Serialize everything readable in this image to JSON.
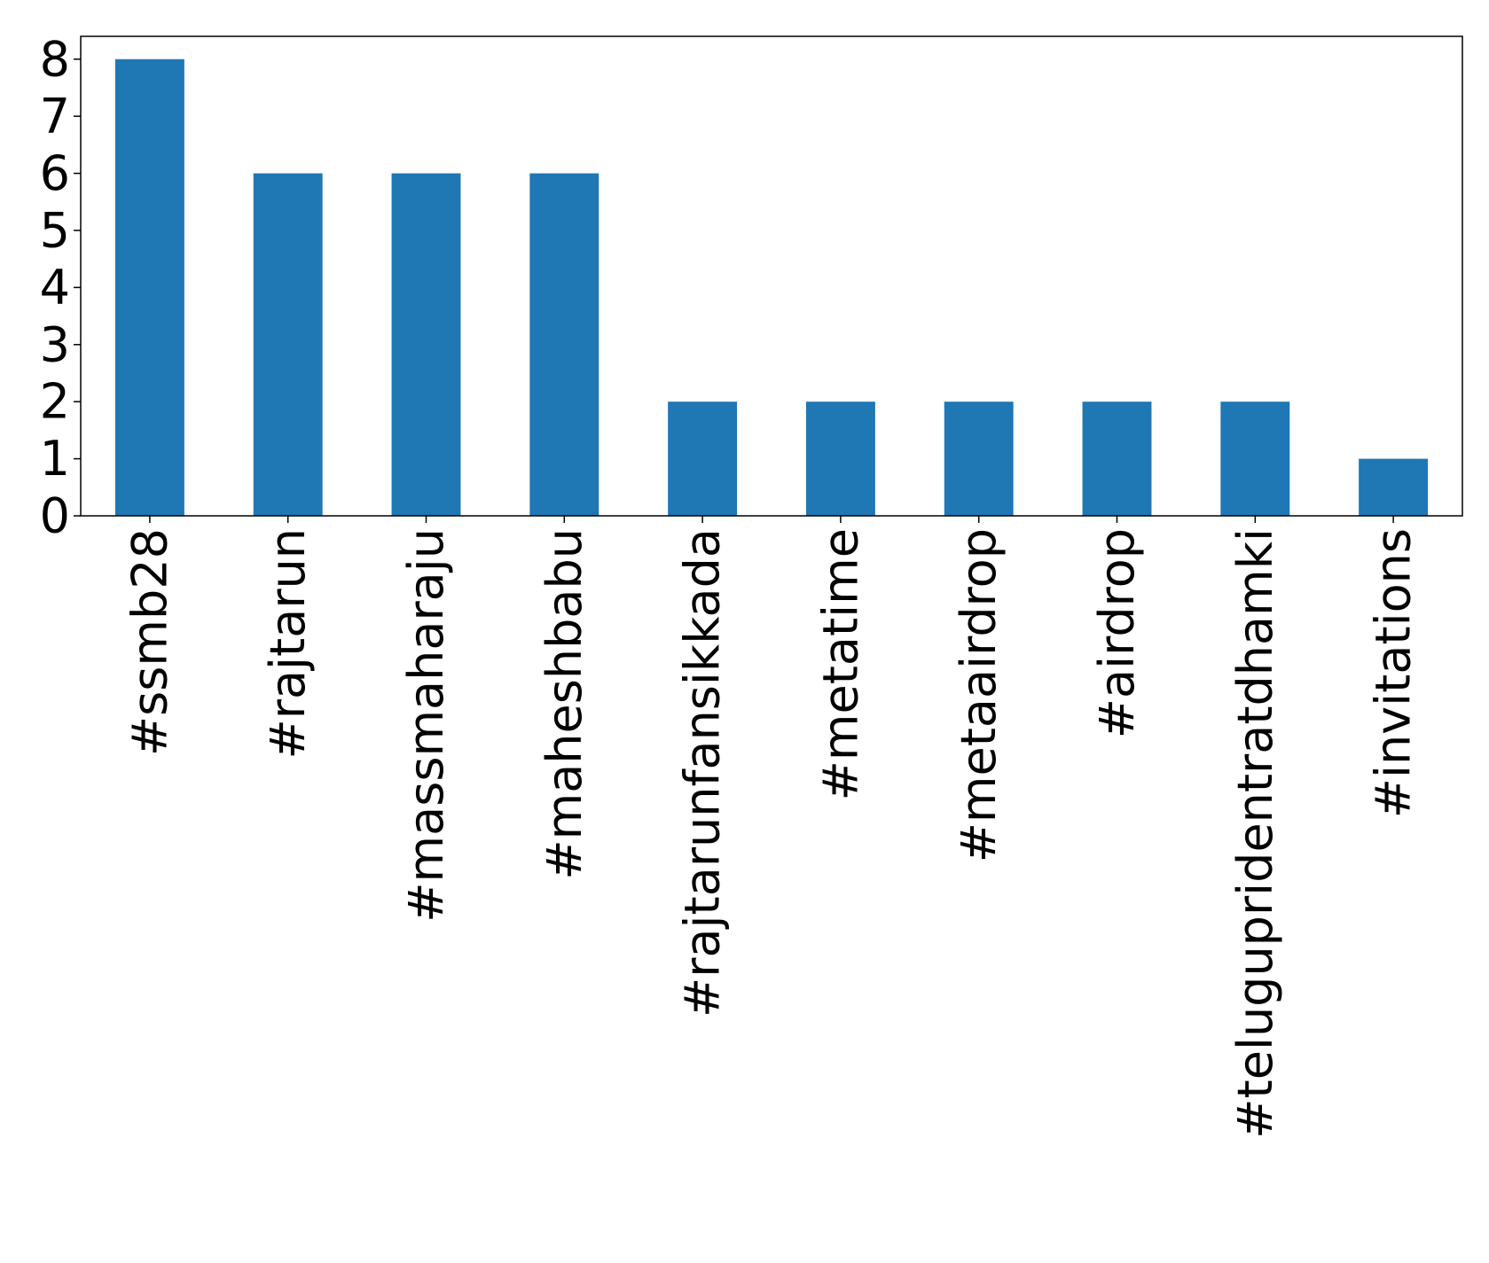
{
  "chart_data": {
    "type": "bar",
    "categories": [
      "#ssmb28",
      "#rajtarun",
      "#massmaharaju",
      "#maheshbabu",
      "#rajtarunfansikkada",
      "#metatime",
      "#metaairdrop",
      "#airdrop",
      "#telugupridentratdhamki",
      "#invitations"
    ],
    "values": [
      8,
      6,
      6,
      6,
      2,
      2,
      2,
      2,
      2,
      1
    ],
    "ylim": [
      0,
      8.4
    ],
    "yticks": [
      0,
      1,
      2,
      3,
      4,
      5,
      6,
      7,
      8
    ],
    "ytick_labels": [
      "0",
      "1",
      "2",
      "3",
      "4",
      "5",
      "6",
      "7",
      "8"
    ],
    "xlabel": "",
    "ylabel": "",
    "title": "",
    "grid": false,
    "bar_color": "#1f77b4"
  }
}
